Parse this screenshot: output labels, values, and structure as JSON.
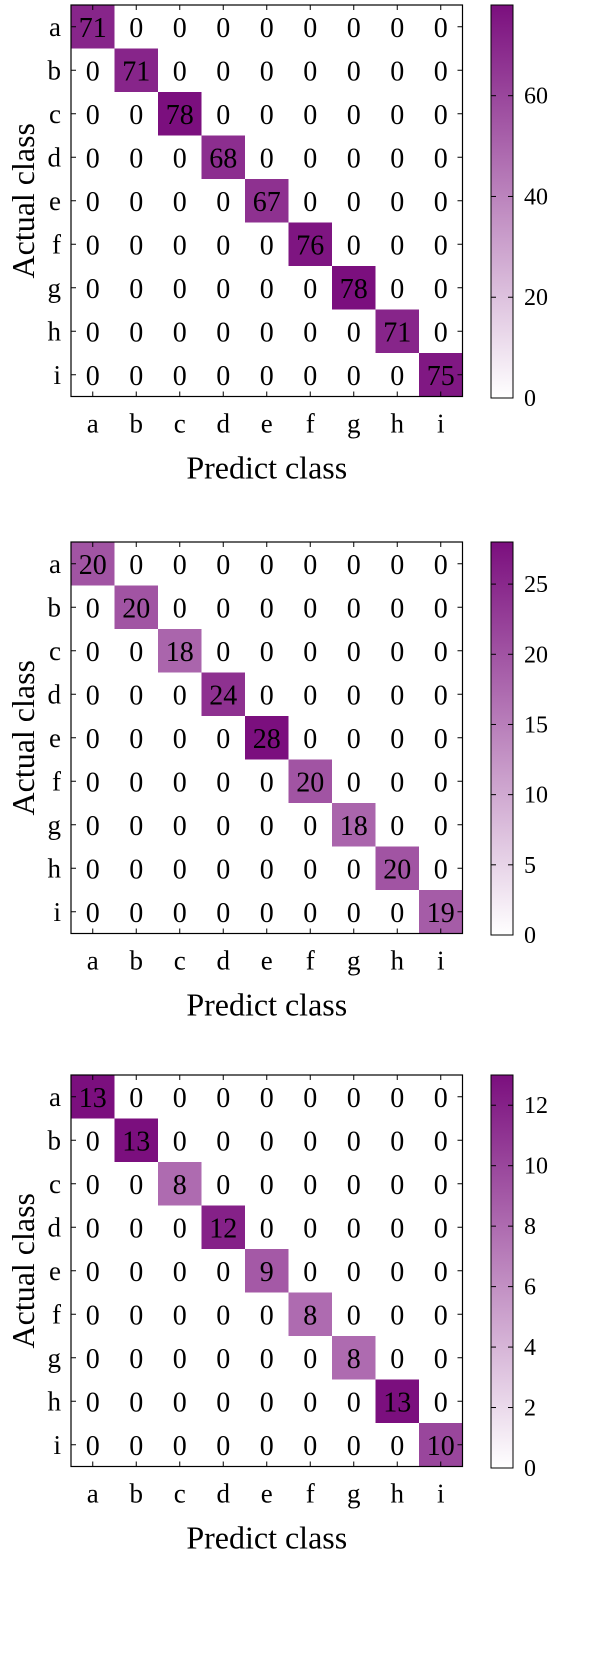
{
  "chart_data": [
    {
      "type": "heatmap",
      "xlabel": "Predict class",
      "ylabel": "Actual class",
      "categories": [
        "a",
        "b",
        "c",
        "d",
        "e",
        "f",
        "g",
        "h",
        "i"
      ],
      "diagonal": [
        71,
        71,
        78,
        68,
        67,
        76,
        78,
        71,
        75
      ],
      "values": [
        [
          71,
          0,
          0,
          0,
          0,
          0,
          0,
          0,
          0
        ],
        [
          0,
          71,
          0,
          0,
          0,
          0,
          0,
          0,
          0
        ],
        [
          0,
          0,
          78,
          0,
          0,
          0,
          0,
          0,
          0
        ],
        [
          0,
          0,
          0,
          68,
          0,
          0,
          0,
          0,
          0
        ],
        [
          0,
          0,
          0,
          0,
          67,
          0,
          0,
          0,
          0
        ],
        [
          0,
          0,
          0,
          0,
          0,
          76,
          0,
          0,
          0
        ],
        [
          0,
          0,
          0,
          0,
          0,
          0,
          78,
          0,
          0
        ],
        [
          0,
          0,
          0,
          0,
          0,
          0,
          0,
          71,
          0
        ],
        [
          0,
          0,
          0,
          0,
          0,
          0,
          0,
          0,
          75
        ]
      ],
      "colorbar": {
        "range": [
          0,
          78
        ],
        "ticks": [
          0,
          20,
          40,
          60
        ]
      },
      "colors": {
        "low": "#ffffff",
        "high": "#7b0f7e"
      }
    },
    {
      "type": "heatmap",
      "xlabel": "Predict class",
      "ylabel": "Actual class",
      "categories": [
        "a",
        "b",
        "c",
        "d",
        "e",
        "f",
        "g",
        "h",
        "i"
      ],
      "diagonal": [
        20,
        20,
        18,
        24,
        28,
        20,
        18,
        20,
        19
      ],
      "values": [
        [
          20,
          0,
          0,
          0,
          0,
          0,
          0,
          0,
          0
        ],
        [
          0,
          20,
          0,
          0,
          0,
          0,
          0,
          0,
          0
        ],
        [
          0,
          0,
          18,
          0,
          0,
          0,
          0,
          0,
          0
        ],
        [
          0,
          0,
          0,
          24,
          0,
          0,
          0,
          0,
          0
        ],
        [
          0,
          0,
          0,
          0,
          28,
          0,
          0,
          0,
          0
        ],
        [
          0,
          0,
          0,
          0,
          0,
          20,
          0,
          0,
          0
        ],
        [
          0,
          0,
          0,
          0,
          0,
          0,
          18,
          0,
          0
        ],
        [
          0,
          0,
          0,
          0,
          0,
          0,
          0,
          20,
          0
        ],
        [
          0,
          0,
          0,
          0,
          0,
          0,
          0,
          0,
          19
        ]
      ],
      "colorbar": {
        "range": [
          0,
          28
        ],
        "ticks": [
          0,
          5,
          10,
          15,
          20,
          25
        ]
      },
      "colors": {
        "low": "#ffffff",
        "high": "#7b0f7e"
      }
    },
    {
      "type": "heatmap",
      "xlabel": "Predict class",
      "ylabel": "Actual class",
      "categories": [
        "a",
        "b",
        "c",
        "d",
        "e",
        "f",
        "g",
        "h",
        "i"
      ],
      "diagonal": [
        13,
        13,
        8,
        12,
        9,
        8,
        8,
        13,
        10
      ],
      "values": [
        [
          13,
          0,
          0,
          0,
          0,
          0,
          0,
          0,
          0
        ],
        [
          0,
          13,
          0,
          0,
          0,
          0,
          0,
          0,
          0
        ],
        [
          0,
          0,
          8,
          0,
          0,
          0,
          0,
          0,
          0
        ],
        [
          0,
          0,
          0,
          12,
          0,
          0,
          0,
          0,
          0
        ],
        [
          0,
          0,
          0,
          0,
          9,
          0,
          0,
          0,
          0
        ],
        [
          0,
          0,
          0,
          0,
          0,
          8,
          0,
          0,
          0
        ],
        [
          0,
          0,
          0,
          0,
          0,
          0,
          8,
          0,
          0
        ],
        [
          0,
          0,
          0,
          0,
          0,
          0,
          0,
          13,
          0
        ],
        [
          0,
          0,
          0,
          0,
          0,
          0,
          0,
          0,
          10
        ]
      ],
      "colorbar": {
        "range": [
          0,
          13
        ],
        "ticks": [
          0,
          2,
          4,
          6,
          8,
          10,
          12
        ]
      },
      "colors": {
        "low": "#ffffff",
        "high": "#7b0f7e"
      }
    }
  ]
}
